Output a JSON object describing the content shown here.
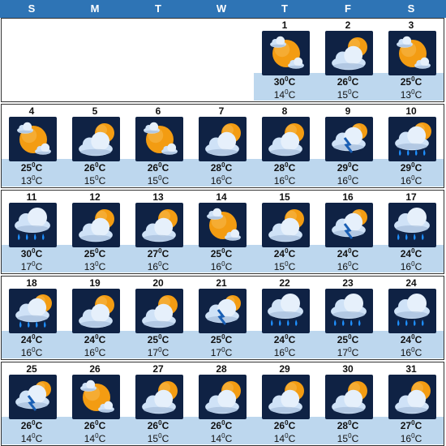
{
  "header": {
    "days": [
      "S",
      "M",
      "T",
      "W",
      "T",
      "F",
      "S"
    ]
  },
  "temp_unit": "C",
  "degree_mark": "0",
  "colors": {
    "header_bg": "#2e74b5",
    "temp_band": "#bdd7ee",
    "icon_bg": "#0f2244",
    "sun": "#f39c12",
    "cloud": "#cfe2f7",
    "rain": "#1e90ff"
  },
  "days": [
    {
      "day": "1",
      "icon": "sun-cloud-icon",
      "high": "30",
      "low": "14"
    },
    {
      "day": "2",
      "icon": "partly-cloudy-icon",
      "high": "26",
      "low": "15"
    },
    {
      "day": "3",
      "icon": "sun-cloud-icon",
      "high": "25",
      "low": "13"
    },
    {
      "day": "4",
      "icon": "sun-cloud-icon",
      "high": "25",
      "low": "13"
    },
    {
      "day": "5",
      "icon": "partly-cloudy-icon",
      "high": "26",
      "low": "15"
    },
    {
      "day": "6",
      "icon": "sun-cloud-icon",
      "high": "26",
      "low": "15"
    },
    {
      "day": "7",
      "icon": "partly-cloudy-icon",
      "high": "28",
      "low": "16"
    },
    {
      "day": "8",
      "icon": "partly-cloudy-icon",
      "high": "28",
      "low": "16"
    },
    {
      "day": "9",
      "icon": "thunderstorm-icon",
      "high": "29",
      "low": "16"
    },
    {
      "day": "10",
      "icon": "sun-rain-icon",
      "high": "29",
      "low": "16"
    },
    {
      "day": "11",
      "icon": "rain-icon",
      "high": "30",
      "low": "17"
    },
    {
      "day": "12",
      "icon": "partly-cloudy-icon",
      "high": "25",
      "low": "13"
    },
    {
      "day": "13",
      "icon": "partly-cloudy-icon",
      "high": "27",
      "low": "16"
    },
    {
      "day": "14",
      "icon": "sun-cloud-icon",
      "high": "25",
      "low": "16"
    },
    {
      "day": "15",
      "icon": "partly-cloudy-icon",
      "high": "24",
      "low": "15"
    },
    {
      "day": "16",
      "icon": "thunderstorm-icon",
      "high": "24",
      "low": "16"
    },
    {
      "day": "17",
      "icon": "rain-icon",
      "high": "24",
      "low": "16"
    },
    {
      "day": "18",
      "icon": "sun-rain-icon",
      "high": "24",
      "low": "16"
    },
    {
      "day": "19",
      "icon": "partly-cloudy-icon",
      "high": "24",
      "low": "16"
    },
    {
      "day": "20",
      "icon": "partly-cloudy-icon",
      "high": "25",
      "low": "17"
    },
    {
      "day": "21",
      "icon": "thunderstorm-icon",
      "high": "25",
      "low": "17"
    },
    {
      "day": "22",
      "icon": "rain-icon",
      "high": "24",
      "low": "16"
    },
    {
      "day": "23",
      "icon": "rain-icon",
      "high": "25",
      "low": "17"
    },
    {
      "day": "24",
      "icon": "rain-icon",
      "high": "24",
      "low": "16"
    },
    {
      "day": "25",
      "icon": "thunderstorm-icon",
      "high": "26",
      "low": "14"
    },
    {
      "day": "26",
      "icon": "sun-cloud-icon",
      "high": "26",
      "low": "14"
    },
    {
      "day": "27",
      "icon": "partly-cloudy-icon",
      "high": "26",
      "low": "15"
    },
    {
      "day": "28",
      "icon": "partly-cloudy-icon",
      "high": "26",
      "low": "14"
    },
    {
      "day": "29",
      "icon": "partly-cloudy-icon",
      "high": "26",
      "low": "14"
    },
    {
      "day": "30",
      "icon": "partly-cloudy-icon",
      "high": "28",
      "low": "15"
    },
    {
      "day": "31",
      "icon": "partly-cloudy-icon",
      "high": "27",
      "low": "16"
    }
  ]
}
